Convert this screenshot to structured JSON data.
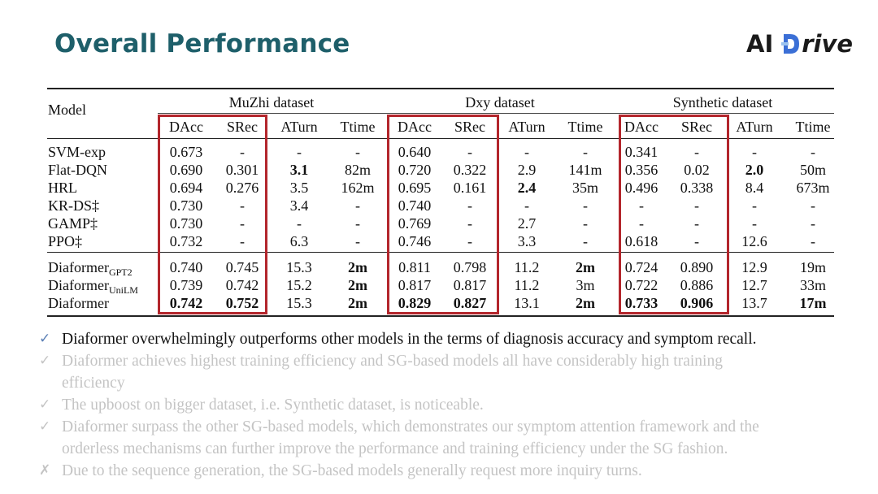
{
  "slide": {
    "title": "Overall Performance",
    "logo": {
      "text_left": "AI",
      "text_right": "rive",
      "mark": "drive-d-logo-icon",
      "colors": {
        "dark": "#1a1a1a",
        "blue": "#3b6fd6",
        "light_blue": "#9cc3ee"
      }
    }
  },
  "table": {
    "model_header": "Model",
    "groups": [
      "MuZhi dataset",
      "Dxy dataset",
      "Synthetic dataset"
    ],
    "metrics": [
      "DAcc",
      "SRec",
      "ATurn",
      "Ttime"
    ],
    "rows": [
      {
        "model": "SVM-exp",
        "values": [
          "0.673",
          "-",
          "-",
          "-",
          "0.640",
          "-",
          "-",
          "-",
          "0.341",
          "-",
          "-",
          "-"
        ],
        "bold": []
      },
      {
        "model": "Flat-DQN",
        "values": [
          "0.690",
          "0.301",
          "3.1",
          "82m",
          "0.720",
          "0.322",
          "2.9",
          "141m",
          "0.356",
          "0.02",
          "2.0",
          "50m"
        ],
        "bold": [
          2,
          10
        ]
      },
      {
        "model": "HRL",
        "values": [
          "0.694",
          "0.276",
          "3.5",
          "162m",
          "0.695",
          "0.161",
          "2.4",
          "35m",
          "0.496",
          "0.338",
          "8.4",
          "673m"
        ],
        "bold": [
          6
        ]
      },
      {
        "model": "KR-DS‡",
        "values": [
          "0.730",
          "-",
          "3.4",
          "-",
          "0.740",
          "-",
          "-",
          "-",
          "-",
          "-",
          "-",
          "-"
        ],
        "bold": []
      },
      {
        "model": "GAMP‡",
        "values": [
          "0.730",
          "-",
          "-",
          "-",
          "0.769",
          "-",
          "2.7",
          "-",
          "-",
          "-",
          "-",
          "-"
        ],
        "bold": []
      },
      {
        "model": "PPO‡",
        "values": [
          "0.732",
          "-",
          "6.3",
          "-",
          "0.746",
          "-",
          "3.3",
          "-",
          "0.618",
          "-",
          "12.6",
          "-"
        ],
        "bold": []
      },
      {
        "model": "Diaformer",
        "model_sub": "GPT2",
        "values": [
          "0.740",
          "0.745",
          "15.3",
          "2m",
          "0.811",
          "0.798",
          "11.2",
          "2m",
          "0.724",
          "0.890",
          "12.9",
          "19m"
        ],
        "bold": [
          3,
          7
        ]
      },
      {
        "model": "Diaformer",
        "model_sub": "UniLM",
        "values": [
          "0.739",
          "0.742",
          "15.2",
          "2m",
          "0.817",
          "0.817",
          "11.2",
          "3m",
          "0.722",
          "0.886",
          "12.7",
          "33m"
        ],
        "bold": [
          3
        ]
      },
      {
        "model": "Diaformer",
        "values": [
          "0.742",
          "0.752",
          "15.3",
          "2m",
          "0.829",
          "0.827",
          "13.1",
          "2m",
          "0.733",
          "0.906",
          "13.7",
          "17m"
        ],
        "bold": [
          0,
          1,
          3,
          4,
          5,
          7,
          8,
          9,
          11
        ]
      }
    ],
    "highlight_color": "#b3262c"
  },
  "bullets": [
    {
      "mark": "✓",
      "icon": "check-icon",
      "text": "Diaformer overwhelmingly outperforms other models in the terms of diagnosis accuracy and symptom recall.",
      "active": true
    },
    {
      "mark": "✓",
      "icon": "check-icon",
      "lines": [
        "Diaformer achieves highest training efficiency and SG-based models all have considerably high training",
        "efficiency"
      ],
      "active": false
    },
    {
      "mark": "✓",
      "icon": "check-icon",
      "text": "The upboost on bigger dataset, i.e. Synthetic dataset, is noticeable.",
      "active": false
    },
    {
      "mark": "✓",
      "icon": "check-icon",
      "lines": [
        "Diaformer surpass the other SG-based models, which demonstrates our symptom attention framework and the",
        "orderless mechanisms can further improve the performance and training efficiency under the SG fashion."
      ],
      "active": false
    },
    {
      "mark": "✗",
      "icon": "cross-icon",
      "text": "Due to the sequence generation, the SG-based models generally request more inquiry turns.",
      "active": false
    }
  ]
}
